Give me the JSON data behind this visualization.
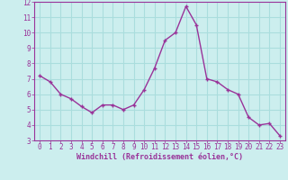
{
  "x": [
    0,
    1,
    2,
    3,
    4,
    5,
    6,
    7,
    8,
    9,
    10,
    11,
    12,
    13,
    14,
    15,
    16,
    17,
    18,
    19,
    20,
    21,
    22,
    23
  ],
  "y": [
    7.2,
    6.8,
    6.0,
    5.7,
    5.2,
    4.8,
    5.3,
    5.3,
    5.0,
    5.3,
    6.3,
    7.7,
    9.5,
    10.0,
    11.7,
    10.5,
    7.0,
    6.8,
    6.3,
    6.0,
    4.5,
    4.0,
    4.1,
    3.3
  ],
  "line_color": "#993399",
  "marker_color": "#993399",
  "bg_color": "#cceeee",
  "grid_color": "#aadddd",
  "xlabel": "Windchill (Refroidissement éolien,°C)",
  "xlabel_color": "#993399",
  "tick_color": "#993399",
  "ylim": [
    3,
    12
  ],
  "xlim_min": -0.5,
  "xlim_max": 23.5,
  "yticks": [
    3,
    4,
    5,
    6,
    7,
    8,
    9,
    10,
    11,
    12
  ],
  "xticks": [
    0,
    1,
    2,
    3,
    4,
    5,
    6,
    7,
    8,
    9,
    10,
    11,
    12,
    13,
    14,
    15,
    16,
    17,
    18,
    19,
    20,
    21,
    22,
    23
  ],
  "xlabel_fontsize": 6.0,
  "tick_fontsize": 5.5,
  "line_width": 1.0,
  "marker_size": 3.5
}
